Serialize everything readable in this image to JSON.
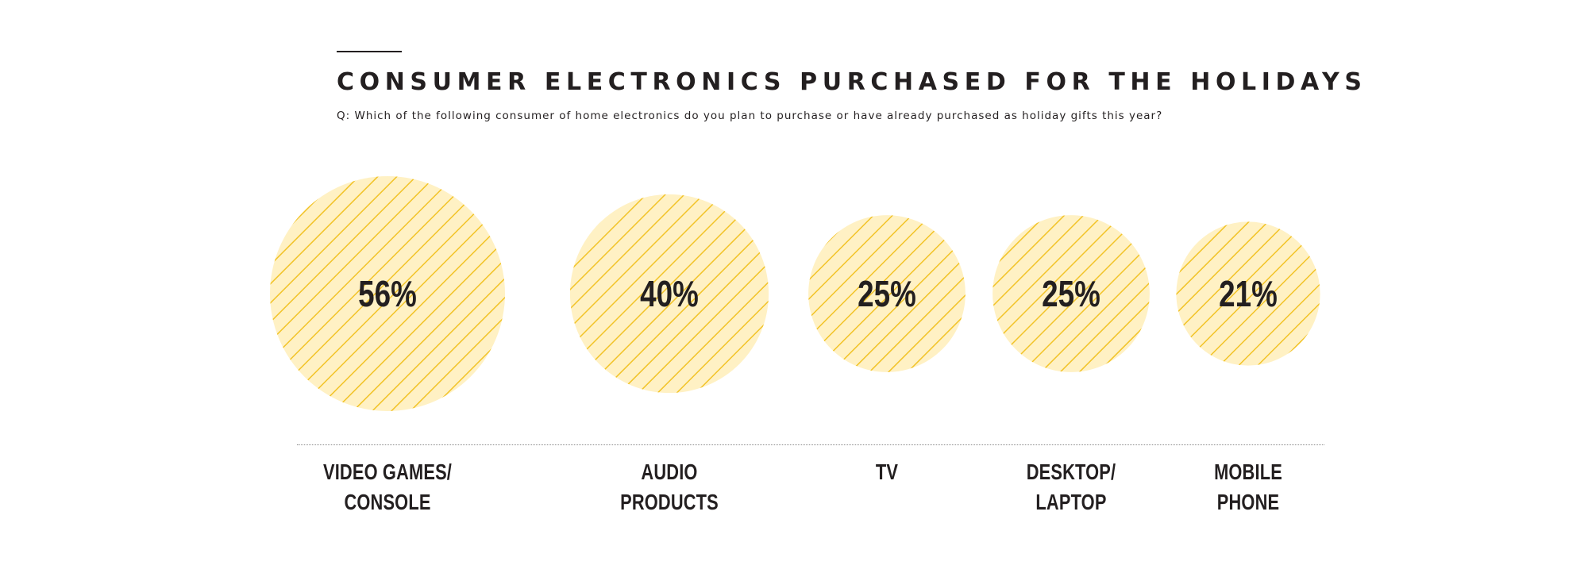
{
  "header": {
    "title": "CONSUMER ELECTRONICS PURCHASED FOR THE HOLIDAYS",
    "subtitle": "Q: Which of the following consumer of home electronics do you plan to purchase or have already purchased as holiday gifts this year?"
  },
  "colors": {
    "bubble_fill": "#fff1c4",
    "hatch_stroke": "#f2c327",
    "text": "#231f20",
    "rule": "#8a8a8a"
  },
  "chart_data": {
    "type": "bubble",
    "title": "CONSUMER ELECTRONICS PURCHASED FOR THE HOLIDAYS",
    "subtitle": "Q: Which of the following consumer of home electronics do you plan to purchase or have already purchased as holiday gifts this year?",
    "unit": "%",
    "categories": [
      {
        "lines": [
          "VIDEO GAMES/",
          "CONSOLE"
        ],
        "value": 56,
        "label": "56%"
      },
      {
        "lines": [
          "AUDIO",
          "PRODUCTS"
        ],
        "value": 40,
        "label": "40%"
      },
      {
        "lines": [
          "TV"
        ],
        "value": 25,
        "label": "25%"
      },
      {
        "lines": [
          "DESKTOP/",
          "LAPTOP"
        ],
        "value": 25,
        "label": "25%"
      },
      {
        "lines": [
          "MOBILE",
          "PHONE"
        ],
        "value": 21,
        "label": "21%"
      }
    ]
  }
}
